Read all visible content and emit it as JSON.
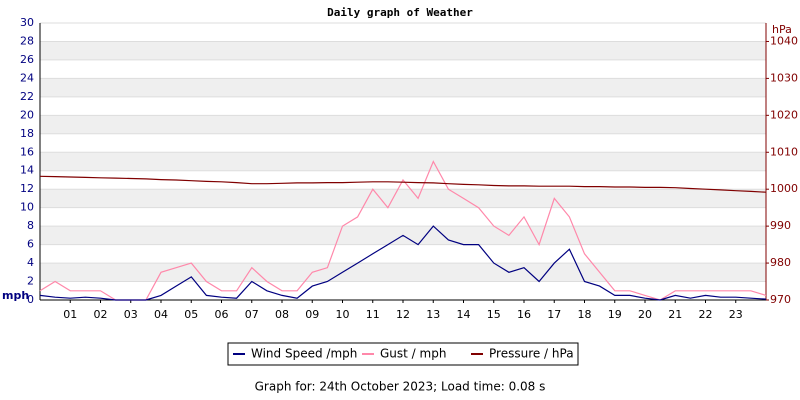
{
  "chart_data": {
    "type": "line",
    "title": "Daily graph of Weather",
    "ylabel": "mph",
    "y2label": "hPa",
    "footer": "Graph for: 24th October 2023; Load time: 0.08 s",
    "x": [
      0,
      0.5,
      1,
      1.5,
      2,
      2.5,
      3,
      3.5,
      4,
      4.5,
      5,
      5.5,
      6,
      6.5,
      7,
      7.5,
      8,
      8.5,
      9,
      9.5,
      10,
      10.5,
      11,
      11.5,
      12,
      12.5,
      13,
      13.5,
      14,
      14.5,
      15,
      15.5,
      16,
      16.5,
      17,
      17.5,
      18,
      18.5,
      19,
      19.5,
      20,
      20.5,
      21,
      21.5,
      22,
      22.5,
      23,
      23.5,
      24
    ],
    "series": [
      {
        "name": "Wind Speed /mph",
        "color": "#000080",
        "values": [
          0.5,
          0.3,
          0.2,
          0.3,
          0.2,
          0,
          0,
          0,
          0.5,
          1.5,
          2.5,
          0.5,
          0.3,
          0.2,
          2,
          1,
          0.5,
          0.2,
          1.5,
          2,
          3,
          4,
          5,
          6,
          7,
          6,
          8,
          6.5,
          6,
          6,
          4,
          3,
          3.5,
          2,
          4,
          5.5,
          2,
          1.5,
          0.5,
          0.5,
          0.2,
          0,
          0.5,
          0.2,
          0.5,
          0.3,
          0.3,
          0.2,
          0.1
        ]
      },
      {
        "name": "Gust / mph",
        "color": "#ff88aa",
        "values": [
          1,
          2,
          1,
          1,
          1,
          0,
          0,
          0,
          3,
          3.5,
          4,
          2,
          1,
          1,
          3.5,
          2,
          1,
          1,
          3,
          3.5,
          8,
          9,
          12,
          10,
          13,
          11,
          15,
          12,
          11,
          10,
          8,
          7,
          9,
          6,
          11,
          9,
          5,
          3,
          1,
          1,
          0.5,
          0,
          1,
          1,
          1,
          1,
          1,
          1,
          0.5
        ]
      },
      {
        "name": "Pressure / hPa",
        "color": "#800000",
        "axis": "y2",
        "values": [
          1003.5,
          1003.4,
          1003.3,
          1003.2,
          1003.1,
          1003,
          1002.9,
          1002.8,
          1002.6,
          1002.5,
          1002.3,
          1002.1,
          1002,
          1001.8,
          1001.5,
          1001.5,
          1001.6,
          1001.7,
          1001.7,
          1001.8,
          1001.8,
          1001.9,
          1002,
          1002,
          1001.9,
          1001.8,
          1001.7,
          1001.5,
          1001.3,
          1001.2,
          1001,
          1000.9,
          1000.9,
          1000.8,
          1000.8,
          1000.8,
          1000.7,
          1000.7,
          1000.6,
          1000.6,
          1000.5,
          1000.5,
          1000.4,
          1000.2,
          1000,
          999.8,
          999.6,
          999.4,
          999.2
        ]
      }
    ],
    "xlim": [
      0,
      24
    ],
    "xticks": [
      {
        "value": 1,
        "label": "01"
      },
      {
        "value": 2,
        "label": "02"
      },
      {
        "value": 3,
        "label": "03"
      },
      {
        "value": 4,
        "label": "04"
      },
      {
        "value": 5,
        "label": "05"
      },
      {
        "value": 6,
        "label": "06"
      },
      {
        "value": 7,
        "label": "07"
      },
      {
        "value": 8,
        "label": "08"
      },
      {
        "value": 9,
        "label": "09"
      },
      10,
      11,
      12,
      13,
      14,
      15,
      16,
      17,
      18,
      19,
      20,
      21,
      22,
      23
    ],
    "ylim": [
      0,
      30
    ],
    "yticks": [
      0,
      2,
      4,
      6,
      8,
      10,
      12,
      14,
      16,
      18,
      20,
      22,
      24,
      26,
      28,
      30
    ],
    "y2lim": [
      970,
      1045
    ],
    "y2ticks": [
      970,
      980,
      990,
      1000,
      1010,
      1020,
      1030,
      1040
    ],
    "grid": true,
    "legend": "bottom"
  }
}
